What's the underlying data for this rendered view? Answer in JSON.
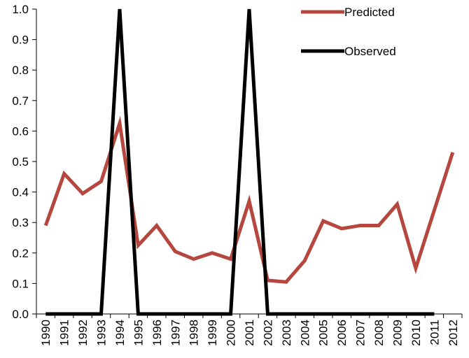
{
  "chart_data": {
    "type": "line",
    "categories": [
      "1990",
      "1991",
      "1992",
      "1993",
      "1994",
      "1995",
      "1996",
      "1997",
      "1998",
      "1999",
      "2000",
      "2001",
      "2002",
      "2003",
      "2004",
      "2005",
      "2006",
      "2007",
      "2008",
      "2009",
      "2010",
      "2011",
      "2012"
    ],
    "series": [
      {
        "name": "Predicted",
        "color": "#b5473f",
        "values": [
          0.29,
          0.46,
          0.395,
          0.435,
          0.625,
          0.225,
          0.29,
          0.205,
          0.18,
          0.2,
          0.18,
          0.37,
          0.11,
          0.105,
          0.175,
          0.305,
          0.28,
          0.29,
          0.29,
          0.36,
          0.15,
          0.34,
          0.53
        ]
      },
      {
        "name": "Observed",
        "color": "#000000",
        "values": [
          0,
          0,
          0,
          0,
          1,
          0,
          0,
          0,
          0,
          0,
          0,
          1,
          0,
          0,
          0,
          0,
          0,
          0,
          0,
          0,
          0,
          0,
          null
        ]
      }
    ],
    "ylim": [
      0,
      1.0
    ],
    "yticks": [
      "0.0",
      "0.1",
      "0.2",
      "0.3",
      "0.4",
      "0.5",
      "0.6",
      "0.7",
      "0.8",
      "0.9",
      "1.0"
    ],
    "grid": false,
    "legend_position": "top-right",
    "title": "",
    "xlabel": "",
    "ylabel": ""
  }
}
